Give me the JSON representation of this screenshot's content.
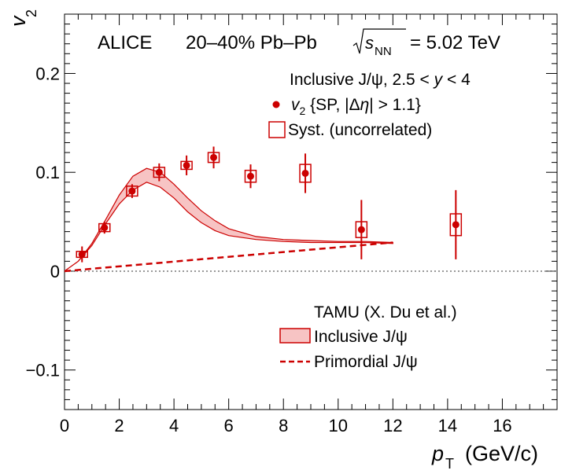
{
  "chart_data": {
    "type": "scatter",
    "experiment": "ALICE",
    "system_text": "20–40% Pb–Pb",
    "energy_value": "= 5.02 TeV",
    "selection_text": "Inclusive J/ψ, 2.5 < y < 4",
    "xlabel": "(GeV/c)",
    "ylabel": "v2",
    "xlim": [
      0,
      18
    ],
    "ylim": [
      -0.14,
      0.26
    ],
    "x_ticks": [
      "0",
      "2",
      "4",
      "6",
      "8",
      "10",
      "12",
      "14",
      "16"
    ],
    "y_ticks": [
      {
        "value": -0.1,
        "label": "−0.1"
      },
      {
        "value": 0,
        "label": "0"
      },
      {
        "value": 0.1,
        "label": "0.1"
      },
      {
        "value": 0.2,
        "label": "0.2"
      }
    ],
    "series": [
      {
        "name": "v2 {SP, |Δη| > 1.1}",
        "color": "#cc0000",
        "x": [
          0.64,
          1.46,
          2.47,
          3.46,
          4.46,
          5.45,
          6.8,
          8.8,
          10.85,
          14.3
        ],
        "y": [
          0.017,
          0.044,
          0.081,
          0.1,
          0.107,
          0.115,
          0.096,
          0.099,
          0.042,
          0.047
        ],
        "stat_err": [
          0.008,
          0.006,
          0.007,
          0.009,
          0.01,
          0.011,
          0.012,
          0.02,
          0.03,
          0.035
        ],
        "syst_err": [
          0.003,
          0.004,
          0.005,
          0.005,
          0.004,
          0.005,
          0.006,
          0.009,
          0.008,
          0.011
        ]
      }
    ],
    "model": {
      "source": "TAMU (X. Du et al.)",
      "inclusive_label": "Inclusive J/ψ",
      "primordial_label": "Primordial J/ψ",
      "color": "#cc0000",
      "band_fill": "#f7c4c4",
      "inclusive_x": [
        0,
        0.5,
        1,
        1.5,
        2,
        2.5,
        3,
        3.5,
        4,
        4.5,
        5,
        5.5,
        6,
        7,
        8,
        9,
        10,
        11,
        12
      ],
      "inclusive_upper": [
        0,
        0.01,
        0.028,
        0.052,
        0.077,
        0.096,
        0.104,
        0.1,
        0.088,
        0.074,
        0.061,
        0.051,
        0.043,
        0.035,
        0.032,
        0.031,
        0.03,
        0.03,
        0.029
      ],
      "inclusive_lower": [
        0,
        0.01,
        0.026,
        0.048,
        0.068,
        0.082,
        0.09,
        0.085,
        0.074,
        0.06,
        0.049,
        0.041,
        0.036,
        0.032,
        0.03,
        0.029,
        0.029,
        0.029,
        0.028
      ],
      "primordial_x": [
        0,
        12
      ],
      "primordial_y": [
        0,
        0.029
      ]
    },
    "legend_syst": "Syst. (uncorrelated)",
    "zero_line": {
      "style": "dotted",
      "color": "#999999"
    }
  }
}
